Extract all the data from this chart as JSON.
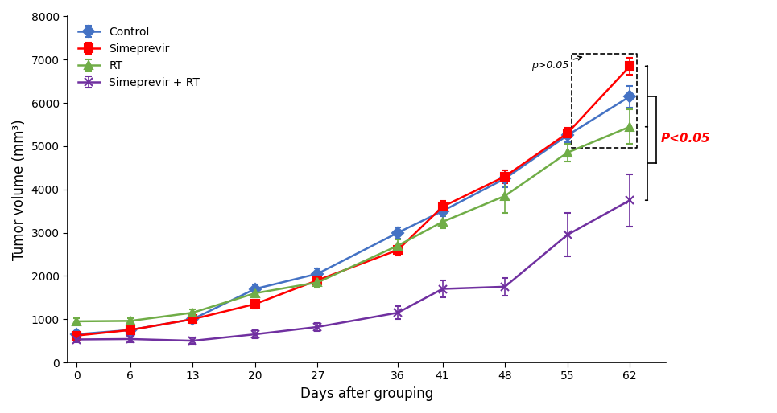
{
  "days": [
    0,
    6,
    13,
    20,
    27,
    36,
    41,
    48,
    55,
    62
  ],
  "control": [
    650,
    750,
    1000,
    1700,
    2050,
    3000,
    3500,
    4250,
    5250,
    6150
  ],
  "control_err": [
    80,
    70,
    90,
    100,
    120,
    130,
    120,
    200,
    150,
    250
  ],
  "simeprevir": [
    620,
    750,
    1000,
    1350,
    1900,
    2600,
    3600,
    4300,
    5300,
    6850
  ],
  "simeprevir_err": [
    60,
    60,
    80,
    100,
    130,
    120,
    130,
    150,
    120,
    200
  ],
  "rt": [
    950,
    960,
    1150,
    1600,
    1850,
    2700,
    3250,
    3850,
    4850,
    5450
  ],
  "rt_err": [
    80,
    70,
    80,
    100,
    130,
    150,
    150,
    400,
    200,
    400
  ],
  "combo": [
    530,
    540,
    500,
    650,
    820,
    1150,
    1700,
    1750,
    2950,
    3750
  ],
  "combo_err": [
    60,
    80,
    80,
    100,
    100,
    150,
    200,
    200,
    500,
    600
  ],
  "control_color": "#4472C4",
  "simeprevir_color": "#FF0000",
  "rt_color": "#70AD47",
  "combo_color": "#7030A0",
  "xlabel": "Days after grouping",
  "ylabel": "Tumor volume (mm³)",
  "ylim": [
    0,
    8000
  ],
  "yticks": [
    0,
    1000,
    2000,
    3000,
    4000,
    5000,
    6000,
    7000,
    8000
  ],
  "xticks": [
    0,
    6,
    13,
    20,
    27,
    36,
    41,
    48,
    55,
    62
  ],
  "legend_labels": [
    "Control",
    "Simeprevir",
    "RT",
    "Simeprevir + RT"
  ],
  "p_ns_text": "p>0.05",
  "p_sig_text": "P<0.05"
}
